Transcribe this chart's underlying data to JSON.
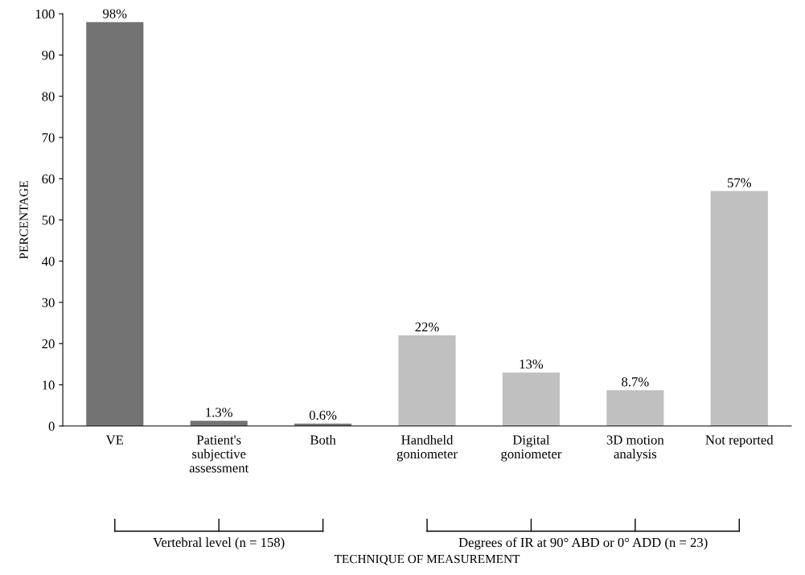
{
  "chart_data": {
    "type": "bar",
    "categories": [
      "VE",
      "Patient's\nsubjective\nassessment",
      "Both",
      "Handheld\ngoniometer",
      "Digital\ngoniometer",
      "3D motion\nanalysis",
      "Not reported"
    ],
    "values": [
      98,
      1.3,
      0.6,
      22,
      13,
      8.7,
      57
    ],
    "value_labels": [
      "98%",
      "1.3%",
      "0.6%",
      "22%",
      "13%",
      "8.7%",
      "57%"
    ],
    "colors": [
      "#737373",
      "#737373",
      "#737373",
      "#c0c0c0",
      "#c0c0c0",
      "#c0c0c0",
      "#c0c0c0"
    ],
    "ylabel": "PERCENTAGE",
    "ylim": [
      0,
      100
    ],
    "yticks": [
      0,
      10,
      20,
      30,
      40,
      50,
      60,
      70,
      80,
      90,
      100
    ],
    "grid": false,
    "legend": false,
    "annotations": [
      "Vertebral level (n = 158)",
      "Degrees of IR at 90° ABD or 0° ADD (n = 23)",
      "TECHNIQUE OF MEASUREMENT"
    ]
  }
}
